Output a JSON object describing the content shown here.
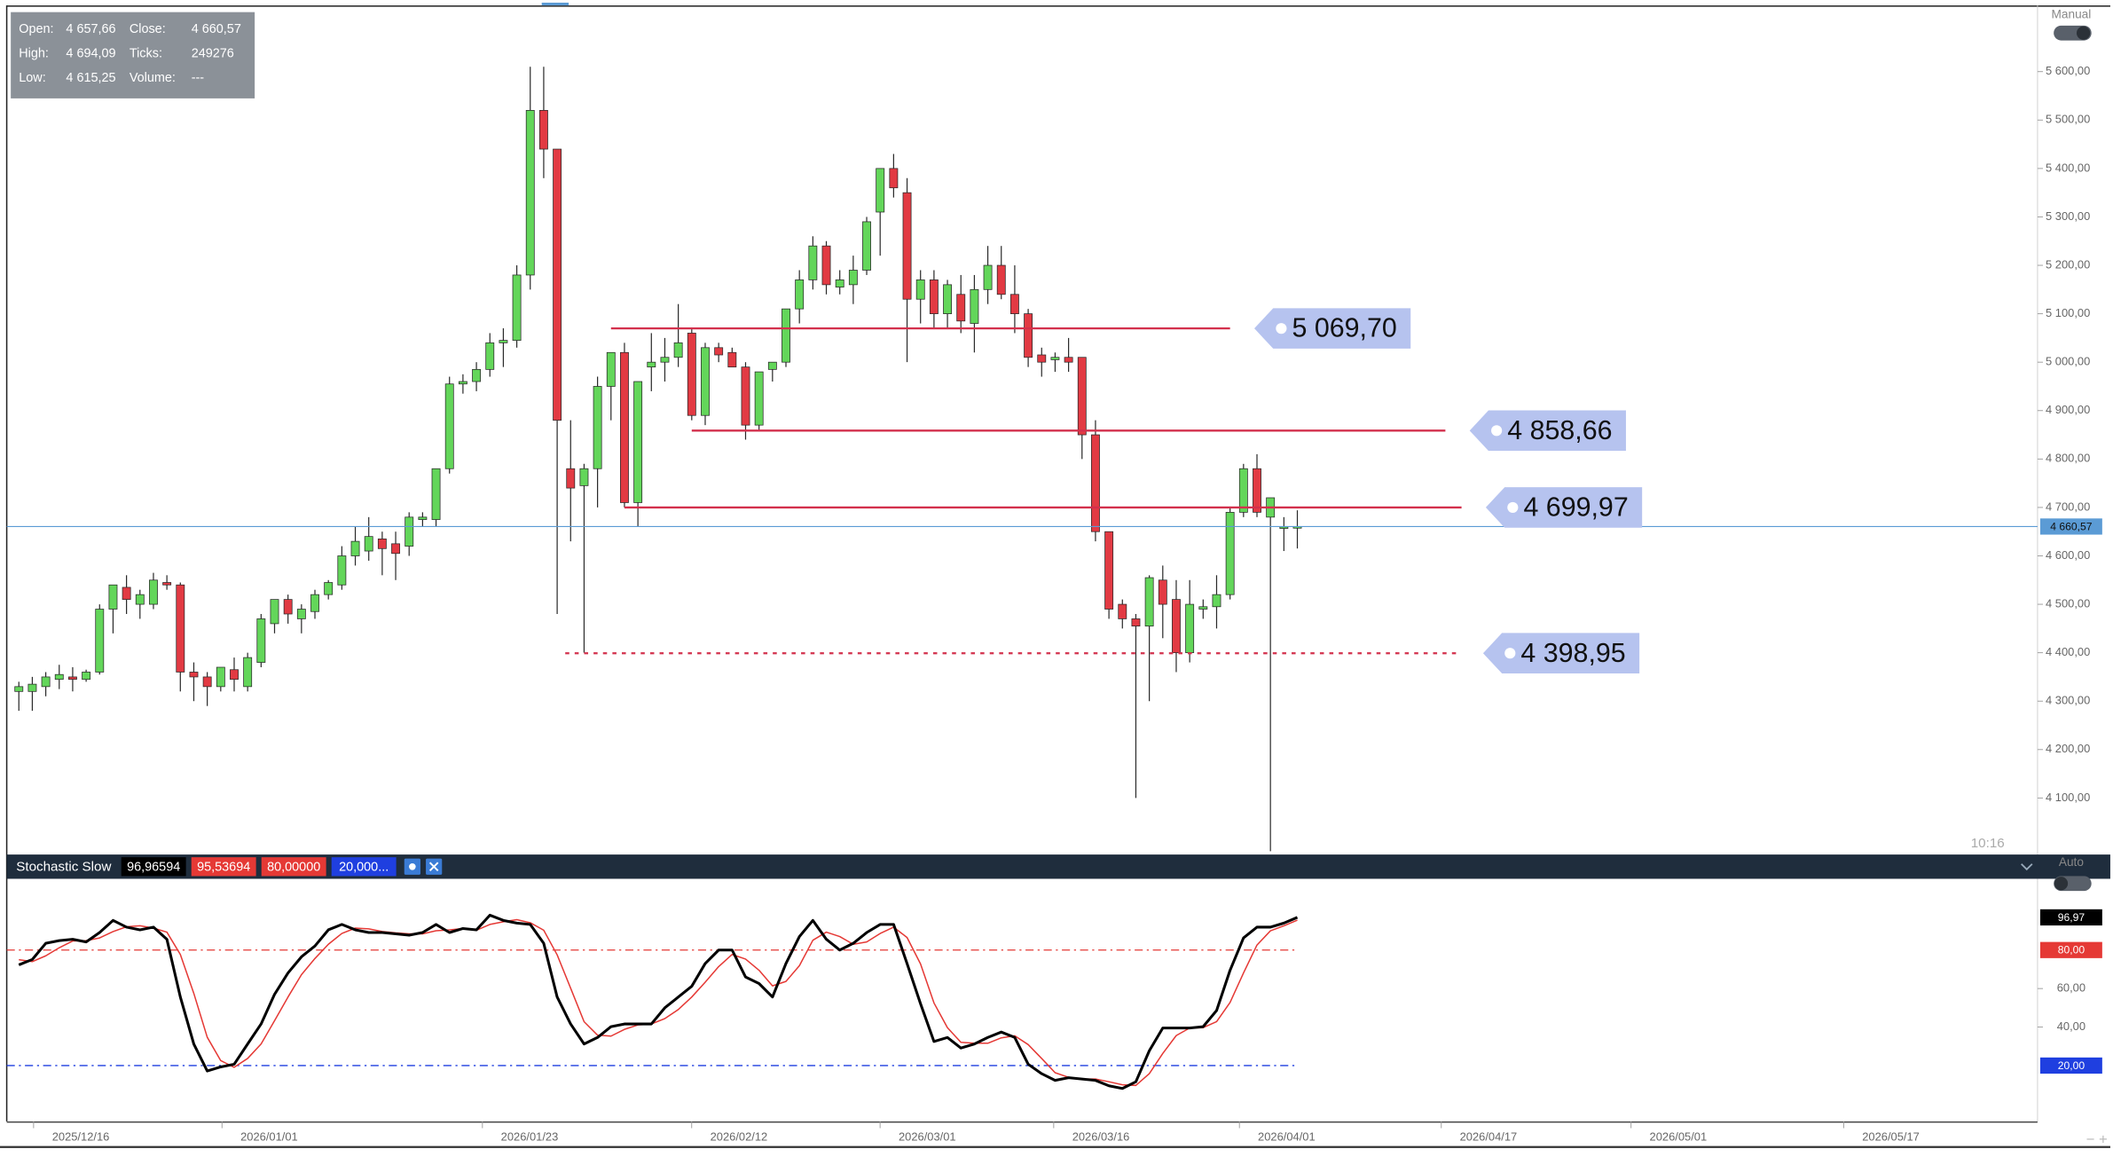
{
  "chart_data": [
    {
      "type": "candlestick",
      "info": [
        [
          "Open:",
          "4 657,66",
          "Close:",
          "4 660,57"
        ],
        [
          "High:",
          "4 694,09",
          "Ticks:",
          "249276"
        ],
        [
          "Low:",
          "4 615,25",
          "Volume:",
          "---"
        ]
      ],
      "open": [
        4320,
        4320,
        4330,
        4345,
        4350,
        4345,
        4360,
        4490,
        4535,
        4500,
        4500,
        4545,
        4540,
        4360,
        4350,
        4330,
        4365,
        4330,
        4380,
        4460,
        4510,
        4470,
        4485,
        4520,
        4540,
        4600,
        4610,
        4635,
        4625,
        4620,
        4675,
        4675,
        4780,
        4955,
        4960,
        4985,
        5040,
        5045,
        5180,
        5520,
        5440,
        4780,
        4745,
        4780,
        4950,
        5020,
        4710,
        4990,
        5000,
        5010,
        5060,
        4890,
        5030,
        5020,
        4990,
        4870,
        4985,
        5000,
        5110,
        5170,
        5240,
        5155,
        5160,
        5190,
        5310,
        5400,
        5350,
        5130,
        5170,
        5100,
        5140,
        5080,
        5150,
        5200,
        5140,
        5100,
        5015,
        5005,
        5010,
        5010,
        4850,
        4650,
        4500,
        4470,
        4455,
        4550,
        4510,
        4400,
        4490,
        4495,
        4520,
        4690,
        4780,
        4680,
        4660,
        4657.66
      ],
      "high": [
        4340,
        4350,
        4360,
        4375,
        4370,
        4365,
        4500,
        4540,
        4560,
        4530,
        4565,
        4560,
        4545,
        4380,
        4360,
        4370,
        4390,
        4400,
        4480,
        4510,
        4520,
        4500,
        4530,
        4550,
        4620,
        4660,
        4680,
        4650,
        4650,
        4690,
        4690,
        4780,
        4970,
        4975,
        5000,
        5060,
        5070,
        5200,
        5610,
        5610,
        5440,
        4880,
        4790,
        4970,
        5020,
        5040,
        4960,
        5060,
        5050,
        5120,
        5070,
        5040,
        5040,
        5030,
        5000,
        4980,
        5000,
        5110,
        5190,
        5260,
        5250,
        5190,
        5220,
        5300,
        5400,
        5430,
        5380,
        5190,
        5190,
        5170,
        5180,
        5180,
        5240,
        5240,
        5200,
        5110,
        5030,
        5020,
        5050,
        5010,
        4880,
        4650,
        4510,
        4480,
        4560,
        4580,
        4550,
        4550,
        4510,
        4560,
        4700,
        4790,
        4810,
        4720,
        4680,
        4694.09
      ],
      "low": [
        4280,
        4280,
        4310,
        4325,
        4320,
        4340,
        4355,
        4440,
        4480,
        4470,
        4490,
        4530,
        4320,
        4300,
        4290,
        4320,
        4320,
        4320,
        4370,
        4440,
        4460,
        4440,
        4470,
        4510,
        4530,
        4580,
        4590,
        4560,
        4550,
        4600,
        4660,
        4660,
        4770,
        4935,
        4940,
        4970,
        4990,
        5030,
        5150,
        5380,
        4480,
        4630,
        4400,
        4700,
        4880,
        4700,
        4660,
        4940,
        4960,
        4990,
        4880,
        4870,
        5000,
        4990,
        4840,
        4860,
        4960,
        4990,
        5080,
        5150,
        5140,
        5140,
        5120,
        5180,
        5220,
        5340,
        5000,
        5080,
        5070,
        5070,
        5060,
        5020,
        5120,
        5130,
        5060,
        4990,
        4970,
        4980,
        4980,
        4800,
        4630,
        4470,
        4450,
        4100,
        4300,
        4430,
        4360,
        4380,
        4470,
        4450,
        4510,
        4680,
        4680,
        3990,
        4610,
        4615.25
      ],
      "close": [
        4330,
        4335,
        4350,
        4355,
        4345,
        4360,
        4490,
        4540,
        4510,
        4520,
        4550,
        4540,
        4360,
        4350,
        4330,
        4370,
        4345,
        4390,
        4470,
        4510,
        4480,
        4490,
        4520,
        4545,
        4600,
        4630,
        4640,
        4615,
        4605,
        4680,
        4680,
        4780,
        4955,
        4960,
        4985,
        5040,
        5045,
        5180,
        5520,
        5440,
        4880,
        4740,
        4780,
        4950,
        5020,
        4710,
        4960,
        5000,
        5010,
        5040,
        4890,
        5030,
        5015,
        4990,
        4870,
        4980,
        5000,
        5110,
        5170,
        5240,
        5160,
        5170,
        5190,
        5290,
        5400,
        5360,
        5130,
        5170,
        5100,
        5160,
        5085,
        5150,
        5200,
        5140,
        5100,
        5010,
        5000,
        5010,
        5000,
        4850,
        4650,
        4490,
        4470,
        4455,
        4555,
        4500,
        4400,
        4500,
        4495,
        4520,
        4690,
        4780,
        4690,
        4720,
        4660,
        4660.57
      ],
      "colors": {
        "up": "#63d65a",
        "down": "#e23a43",
        "outline": "#2a2a2a"
      },
      "xlim": [
        -0.9,
        150
      ],
      "xticks": [
        {
          "value": 4.6,
          "label": "2025/12/16"
        },
        {
          "value": 18.6,
          "label": "2026/01/01"
        },
        {
          "value": 37.95,
          "label": "2026/01/23"
        },
        {
          "value": 53.5,
          "label": "2026/02/12"
        },
        {
          "value": 67.5,
          "label": "2026/03/01"
        },
        {
          "value": 80.4,
          "label": "2026/03/16"
        },
        {
          "value": 94.2,
          "label": "2026/04/01"
        },
        {
          "value": 109.2,
          "label": "2026/04/17"
        },
        {
          "value": 123.3,
          "label": "2026/05/01"
        },
        {
          "value": 139.1,
          "label": "2026/05/17"
        }
      ],
      "ylim": [
        3986,
        5734
      ],
      "yticks": [
        {
          "value": 4100,
          "label": "4 100,00"
        },
        {
          "value": 4200,
          "label": "4 200,00"
        },
        {
          "value": 4300,
          "label": "4 300,00"
        },
        {
          "value": 4400,
          "label": "4 400,00"
        },
        {
          "value": 4500,
          "label": "4 500,00"
        },
        {
          "value": 4600,
          "label": "4 600,00"
        },
        {
          "value": 4700,
          "label": "4 700,00"
        },
        {
          "value": 4800,
          "label": "4 800,00"
        },
        {
          "value": 4900,
          "label": "4 900,00"
        },
        {
          "value": 5000,
          "label": "5 000,00"
        },
        {
          "value": 5100,
          "label": "5 100,00"
        },
        {
          "value": 5200,
          "label": "5 200,00"
        },
        {
          "value": 5300,
          "label": "5 300,00"
        },
        {
          "value": 5400,
          "label": "5 400,00"
        },
        {
          "value": 5500,
          "label": "5 500,00"
        },
        {
          "value": 5600,
          "label": "5 600,00"
        }
      ],
      "last_price_label": "4 660,57",
      "last_price_color": "#5b9bd5",
      "levels": [
        {
          "value": 5069.7,
          "label": "5 069,70",
          "from": 44,
          "to": 90,
          "style": "solid"
        },
        {
          "value": 4858.66,
          "label": "4 858,66",
          "from": 50,
          "to": 106,
          "style": "solid"
        },
        {
          "value": 4699.97,
          "label": "4 699,97",
          "from": 45,
          "to": 107.2,
          "style": "solid"
        },
        {
          "value": 4398.95,
          "label": "4 398,95",
          "from": 40.6,
          "to": 107,
          "style": "dotted"
        }
      ],
      "level_color": "#d3304c",
      "mode_label": "Manual",
      "time_label": "10:16"
    },
    {
      "type": "line",
      "title": "Stochastic Slow",
      "series": [
        {
          "color": "#000000",
          "legend_label": "96,96594",
          "axis_label": "96,97",
          "values": [
            72.3,
            75.1,
            83.5,
            84.9,
            85.6,
            84.2,
            89.1,
            95.4,
            91.9,
            90.5,
            91.9,
            85.6,
            55.6,
            31.2,
            17.2,
            19.3,
            20.7,
            31.2,
            41.6,
            57.0,
            68.1,
            76.5,
            82.1,
            90.5,
            93.3,
            90.5,
            89.1,
            89.1,
            88.4,
            87.7,
            89.1,
            93.3,
            89.1,
            91.2,
            90.5,
            98.1,
            95.4,
            94.0,
            93.3,
            83.5,
            55.6,
            41.6,
            31.2,
            34.6,
            40.2,
            41.6,
            41.6,
            41.6,
            50.0,
            55.6,
            61.2,
            73.0,
            80.0,
            80.0,
            66.0,
            62.6,
            55.6,
            73.0,
            87.0,
            95.4,
            85.6,
            80.0,
            83.5,
            89.1,
            93.3,
            93.3,
            73.0,
            52.1,
            32.5,
            34.6,
            29.1,
            31.2,
            34.6,
            37.4,
            34.6,
            20.7,
            15.8,
            12.3,
            13.7,
            13.0,
            12.3,
            9.5,
            8.1,
            11.6,
            27.7,
            39.5,
            39.5,
            39.5,
            40.2,
            48.6,
            69.5,
            86.3,
            91.9,
            91.9,
            94.0,
            96.96594
          ]
        },
        {
          "color": "#e53935",
          "legend_label": "95,53694",
          "values": [
            75,
            74,
            77.0,
            81.2,
            84.7,
            84.9,
            86.3,
            89.6,
            92.1,
            92.6,
            91.4,
            89.3,
            77.7,
            57.5,
            34.7,
            22.6,
            19.1,
            23.7,
            31.2,
            43.3,
            55.6,
            67.2,
            75.6,
            83.0,
            88.6,
            91.4,
            91.0,
            89.6,
            88.9,
            88.4,
            88.4,
            90.0,
            90.5,
            91.2,
            90.3,
            93.3,
            94.7,
            95.8,
            94.2,
            90.3,
            77.5,
            60.2,
            42.8,
            35.8,
            35.3,
            38.8,
            41.1,
            41.6,
            44.4,
            49.1,
            55.6,
            63.3,
            71.4,
            77.7,
            75.3,
            69.5,
            61.4,
            63.7,
            71.9,
            85.1,
            89.3,
            87.0,
            83.0,
            84.2,
            88.6,
            91.9,
            86.5,
            72.8,
            52.5,
            39.7,
            32.1,
            31.6,
            31.6,
            34.4,
            35.5,
            30.9,
            23.7,
            16.3,
            13.9,
            13.0,
            13.0,
            11.6,
            10.0,
            9.7,
            15.8,
            26.3,
            35.6,
            39.5,
            39.7,
            42.8,
            52.8,
            68.1,
            82.6,
            90.0,
            92.6,
            95.53694
          ]
        }
      ],
      "levels": [
        {
          "value": 80,
          "label": "80,00",
          "legend_label": "80,00000",
          "color": "#e53935"
        },
        {
          "value": 20,
          "label": "20,00",
          "legend_label": "20,000...",
          "color": "#1f3fe0"
        }
      ],
      "xlim": [
        -0.9,
        150
      ],
      "ylim": [
        -9,
        117
      ],
      "yticks": [
        {
          "value": 60,
          "label": "60,00"
        },
        {
          "value": 40,
          "label": "40,00"
        }
      ],
      "mode_label": "Auto"
    }
  ]
}
